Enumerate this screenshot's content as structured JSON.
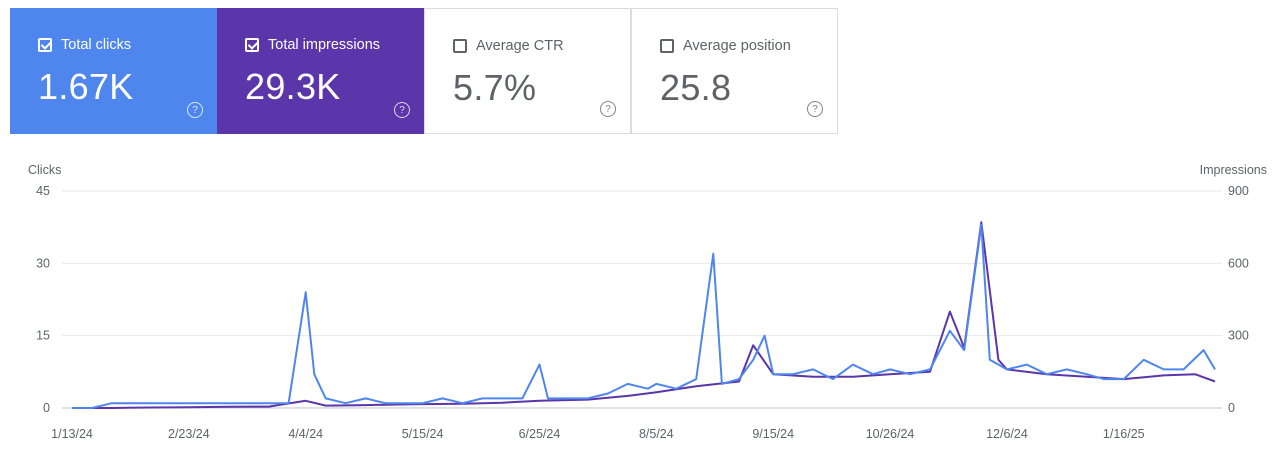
{
  "cards": [
    {
      "label": "Total clicks",
      "value": "1.67K",
      "checked": true,
      "help_icon": "help-circle-icon"
    },
    {
      "label": "Total impressions",
      "value": "29.3K",
      "checked": true,
      "help_icon": "help-circle-icon"
    },
    {
      "label": "Average CTR",
      "value": "5.7%",
      "checked": false,
      "help_icon": "help-circle-icon"
    },
    {
      "label": "Average position",
      "value": "25.8",
      "checked": false,
      "help_icon": "help-circle-icon"
    }
  ],
  "colors": {
    "clicks": "#4e86ee",
    "impressions": "#5b36aa",
    "grid": "#e8eaed",
    "text": "#5f6368"
  },
  "chart_data": {
    "type": "line",
    "ylabel_left": "Clicks",
    "ylabel_right": "Impressions",
    "y_left_ticks": [
      "45",
      "30",
      "15",
      "0"
    ],
    "y_right_ticks": [
      "900",
      "600",
      "300",
      "0"
    ],
    "ylim_left": [
      0,
      45
    ],
    "ylim_right": [
      0,
      900
    ],
    "x_start": "2024-01-13",
    "x_end": "2025-02-17",
    "x_ticks": [
      {
        "date": "2024-01-13",
        "label": "1/13/24"
      },
      {
        "date": "2024-02-23",
        "label": "2/23/24"
      },
      {
        "date": "2024-04-04",
        "label": "4/4/24"
      },
      {
        "date": "2024-05-15",
        "label": "5/15/24"
      },
      {
        "date": "2024-06-25",
        "label": "6/25/24"
      },
      {
        "date": "2024-08-05",
        "label": "8/5/24"
      },
      {
        "date": "2024-09-15",
        "label": "9/15/24"
      },
      {
        "date": "2024-10-26",
        "label": "10/26/24"
      },
      {
        "date": "2024-12-06",
        "label": "12/6/24"
      },
      {
        "date": "2025-01-16",
        "label": "1/16/25"
      }
    ],
    "grid": true,
    "series": [
      {
        "name": "Clicks",
        "axis": "left",
        "points": [
          [
            "2024-01-13",
            0
          ],
          [
            "2024-01-20",
            0
          ],
          [
            "2024-01-27",
            1
          ],
          [
            "2024-02-03",
            1
          ],
          [
            "2024-02-10",
            1
          ],
          [
            "2024-02-17",
            1
          ],
          [
            "2024-02-23",
            1
          ],
          [
            "2024-03-01",
            1
          ],
          [
            "2024-03-08",
            1
          ],
          [
            "2024-03-15",
            1
          ],
          [
            "2024-03-22",
            1
          ],
          [
            "2024-03-29",
            1
          ],
          [
            "2024-04-04",
            24
          ],
          [
            "2024-04-07",
            7
          ],
          [
            "2024-04-11",
            2
          ],
          [
            "2024-04-18",
            1
          ],
          [
            "2024-04-25",
            2
          ],
          [
            "2024-05-02",
            1
          ],
          [
            "2024-05-09",
            1
          ],
          [
            "2024-05-15",
            1
          ],
          [
            "2024-05-22",
            2
          ],
          [
            "2024-05-29",
            1
          ],
          [
            "2024-06-05",
            2
          ],
          [
            "2024-06-12",
            2
          ],
          [
            "2024-06-19",
            2
          ],
          [
            "2024-06-25",
            9
          ],
          [
            "2024-06-28",
            2
          ],
          [
            "2024-07-05",
            2
          ],
          [
            "2024-07-12",
            2
          ],
          [
            "2024-07-19",
            3
          ],
          [
            "2024-07-26",
            5
          ],
          [
            "2024-08-02",
            4
          ],
          [
            "2024-08-05",
            5
          ],
          [
            "2024-08-12",
            4
          ],
          [
            "2024-08-19",
            6
          ],
          [
            "2024-08-25",
            32
          ],
          [
            "2024-08-28",
            5
          ],
          [
            "2024-09-03",
            6
          ],
          [
            "2024-09-08",
            10
          ],
          [
            "2024-09-12",
            15
          ],
          [
            "2024-09-15",
            7
          ],
          [
            "2024-09-22",
            7
          ],
          [
            "2024-09-29",
            8
          ],
          [
            "2024-10-06",
            6
          ],
          [
            "2024-10-13",
            9
          ],
          [
            "2024-10-20",
            7
          ],
          [
            "2024-10-26",
            8
          ],
          [
            "2024-11-02",
            7
          ],
          [
            "2024-11-09",
            8
          ],
          [
            "2024-11-16",
            16
          ],
          [
            "2024-11-21",
            12
          ],
          [
            "2024-11-27",
            38
          ],
          [
            "2024-11-30",
            10
          ],
          [
            "2024-12-06",
            8
          ],
          [
            "2024-12-13",
            9
          ],
          [
            "2024-12-20",
            7
          ],
          [
            "2024-12-27",
            8
          ],
          [
            "2025-01-03",
            7
          ],
          [
            "2025-01-09",
            6
          ],
          [
            "2025-01-16",
            6
          ],
          [
            "2025-01-23",
            10
          ],
          [
            "2025-01-30",
            8
          ],
          [
            "2025-02-06",
            8
          ],
          [
            "2025-02-13",
            12
          ],
          [
            "2025-02-17",
            8
          ]
        ]
      },
      {
        "name": "Impressions",
        "axis": "right",
        "points": [
          [
            "2024-01-13",
            0
          ],
          [
            "2024-01-27",
            0
          ],
          [
            "2024-02-10",
            2
          ],
          [
            "2024-02-23",
            3
          ],
          [
            "2024-03-08",
            5
          ],
          [
            "2024-03-22",
            6
          ],
          [
            "2024-04-04",
            30
          ],
          [
            "2024-04-11",
            10
          ],
          [
            "2024-04-25",
            12
          ],
          [
            "2024-05-09",
            15
          ],
          [
            "2024-05-15",
            16
          ],
          [
            "2024-05-29",
            18
          ],
          [
            "2024-06-12",
            22
          ],
          [
            "2024-06-25",
            30
          ],
          [
            "2024-07-12",
            35
          ],
          [
            "2024-07-26",
            50
          ],
          [
            "2024-08-05",
            65
          ],
          [
            "2024-08-19",
            90
          ],
          [
            "2024-09-03",
            110
          ],
          [
            "2024-09-08",
            260
          ],
          [
            "2024-09-15",
            140
          ],
          [
            "2024-09-29",
            130
          ],
          [
            "2024-10-13",
            130
          ],
          [
            "2024-10-26",
            140
          ],
          [
            "2024-11-09",
            150
          ],
          [
            "2024-11-16",
            400
          ],
          [
            "2024-11-21",
            250
          ],
          [
            "2024-11-27",
            770
          ],
          [
            "2024-12-03",
            200
          ],
          [
            "2024-12-06",
            160
          ],
          [
            "2024-12-20",
            140
          ],
          [
            "2025-01-03",
            130
          ],
          [
            "2025-01-16",
            120
          ],
          [
            "2025-01-30",
            135
          ],
          [
            "2025-02-10",
            140
          ],
          [
            "2025-02-17",
            110
          ]
        ]
      }
    ]
  }
}
